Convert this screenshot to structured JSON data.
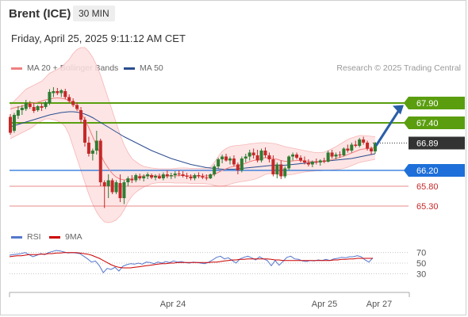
{
  "header": {
    "instrument": "Brent (ICE)",
    "timeframe": "30 MIN",
    "datetime": "Friday, April 25, 2025 9:11:12 AM CET"
  },
  "legend": {
    "ma20_label": "MA 20 + Bollinger Bands",
    "ma50_label": "MA 50",
    "credit": "Research © 2025 Trading Central"
  },
  "rsi_legend": {
    "rsi_label": "RSI",
    "ma9_label": "9MA"
  },
  "colors": {
    "up": "#2e7d32",
    "down": "#c62828",
    "resistance": "#5a9e0f",
    "pivot": "#1e6fd9",
    "support": "#e06060",
    "last": "#333333",
    "ma20": "#f08080",
    "ma50": "#2a4d8f",
    "bollinger_fill": "#fde0e0",
    "rsi": "#5577cc",
    "rsi_ma": "#cc0000"
  },
  "chart_data": [
    {
      "type": "candlestick",
      "title": "Brent (ICE) 30 MIN",
      "x_labels": [
        "Apr 24",
        "Apr 25",
        "Apr 27"
      ],
      "ylim": [
        64.9,
        68.5
      ],
      "levels": [
        {
          "value": 67.9,
          "label": "67.90",
          "role": "resistance"
        },
        {
          "value": 67.4,
          "label": "67.40",
          "role": "resistance"
        },
        {
          "value": 66.89,
          "label": "66.89",
          "role": "last"
        },
        {
          "value": 66.2,
          "label": "66.20",
          "role": "pivot"
        },
        {
          "value": 65.8,
          "label": "65.80",
          "role": "support"
        },
        {
          "value": 65.3,
          "label": "65.30",
          "role": "support"
        }
      ],
      "candles": [
        [
          67.55,
          67.62,
          67.1,
          67.15
        ],
        [
          67.2,
          67.65,
          67.15,
          67.6
        ],
        [
          67.58,
          67.82,
          67.5,
          67.72
        ],
        [
          67.72,
          67.85,
          67.6,
          67.78
        ],
        [
          67.75,
          67.98,
          67.7,
          67.9
        ],
        [
          67.88,
          67.95,
          67.75,
          67.8
        ],
        [
          67.8,
          67.9,
          67.65,
          67.7
        ],
        [
          67.72,
          67.85,
          67.68,
          67.82
        ],
        [
          67.82,
          67.9,
          67.7,
          67.78
        ],
        [
          67.8,
          67.95,
          67.75,
          67.92
        ],
        [
          67.9,
          68.25,
          67.85,
          68.18
        ],
        [
          68.15,
          68.3,
          68.05,
          68.2
        ],
        [
          68.2,
          68.28,
          68.1,
          68.15
        ],
        [
          68.15,
          68.25,
          68.05,
          68.22
        ],
        [
          68.2,
          68.26,
          68.0,
          68.05
        ],
        [
          68.05,
          68.12,
          67.9,
          67.95
        ],
        [
          67.95,
          68.02,
          67.8,
          67.85
        ],
        [
          67.85,
          67.92,
          67.7,
          67.75
        ],
        [
          67.72,
          67.8,
          67.4,
          67.48
        ],
        [
          67.48,
          67.55,
          66.8,
          66.9
        ],
        [
          66.9,
          67.05,
          66.55,
          66.62
        ],
        [
          66.62,
          66.75,
          66.45,
          66.7
        ],
        [
          66.7,
          67.2,
          66.6,
          66.95
        ],
        [
          66.95,
          67.0,
          65.8,
          65.9
        ],
        [
          65.9,
          65.95,
          65.25,
          65.8
        ],
        [
          65.8,
          66.1,
          65.5,
          65.95
        ],
        [
          65.95,
          66.0,
          65.6,
          65.65
        ],
        [
          65.65,
          65.95,
          65.6,
          65.9
        ],
        [
          65.88,
          66.1,
          65.4,
          65.5
        ],
        [
          65.5,
          65.95,
          65.35,
          65.9
        ],
        [
          65.9,
          66.05,
          65.8,
          66.0
        ],
        [
          65.98,
          66.08,
          65.88,
          65.95
        ],
        [
          65.95,
          66.12,
          65.9,
          66.08
        ],
        [
          66.05,
          66.12,
          65.95,
          66.0
        ],
        [
          66.0,
          66.1,
          65.92,
          66.05
        ],
        [
          66.05,
          66.15,
          65.98,
          66.1
        ],
        [
          66.08,
          66.12,
          65.98,
          66.02
        ],
        [
          66.02,
          66.1,
          65.95,
          66.06
        ],
        [
          66.05,
          66.12,
          65.98,
          66.0
        ],
        [
          66.0,
          66.15,
          65.95,
          66.1
        ],
        [
          66.1,
          66.2,
          66.0,
          66.05
        ],
        [
          66.05,
          66.14,
          65.98,
          66.08
        ],
        [
          66.08,
          66.18,
          66.0,
          66.12
        ],
        [
          66.12,
          66.2,
          66.05,
          66.1
        ],
        [
          66.1,
          66.18,
          66.02,
          66.06
        ],
        [
          66.06,
          66.14,
          65.98,
          66.04
        ],
        [
          66.04,
          66.1,
          65.95,
          66.0
        ],
        [
          66.0,
          66.12,
          65.95,
          66.08
        ],
        [
          66.08,
          66.15,
          66.0,
          66.05
        ],
        [
          66.05,
          66.12,
          65.98,
          66.02
        ],
        [
          66.02,
          66.1,
          65.95,
          66.0
        ],
        [
          66.0,
          66.12,
          65.98,
          66.1
        ],
        [
          66.1,
          66.35,
          66.05,
          66.3
        ],
        [
          66.3,
          66.52,
          66.25,
          66.48
        ],
        [
          66.48,
          66.6,
          66.38,
          66.55
        ],
        [
          66.55,
          66.62,
          66.42,
          66.45
        ],
        [
          66.45,
          66.55,
          66.35,
          66.5
        ],
        [
          66.5,
          66.58,
          66.3,
          66.35
        ],
        [
          66.35,
          66.4,
          66.1,
          66.2
        ],
        [
          66.2,
          66.55,
          66.15,
          66.5
        ],
        [
          66.5,
          66.62,
          66.4,
          66.55
        ],
        [
          66.55,
          66.72,
          66.45,
          66.65
        ],
        [
          66.65,
          66.75,
          66.5,
          66.58
        ],
        [
          66.58,
          66.72,
          66.4,
          66.45
        ],
        [
          66.45,
          66.75,
          66.4,
          66.7
        ],
        [
          66.7,
          66.78,
          66.52,
          66.58
        ],
        [
          66.58,
          66.65,
          66.4,
          66.48
        ],
        [
          66.48,
          66.58,
          66.05,
          66.1
        ],
        [
          66.1,
          66.4,
          66.0,
          66.35
        ],
        [
          66.35,
          66.45,
          65.98,
          66.05
        ],
        [
          66.05,
          66.3,
          66.0,
          66.25
        ],
        [
          66.25,
          66.58,
          66.2,
          66.55
        ],
        [
          66.55,
          66.65,
          66.45,
          66.6
        ],
        [
          66.6,
          66.65,
          66.48,
          66.52
        ],
        [
          66.52,
          66.58,
          66.4,
          66.45
        ],
        [
          66.45,
          66.55,
          66.35,
          66.4
        ],
        [
          66.4,
          66.48,
          66.3,
          66.35
        ],
        [
          66.35,
          66.45,
          66.28,
          66.42
        ],
        [
          66.42,
          66.5,
          66.35,
          66.4
        ],
        [
          66.4,
          66.48,
          66.32,
          66.45
        ],
        [
          66.45,
          66.52,
          66.38,
          66.42
        ],
        [
          66.42,
          66.7,
          66.4,
          66.65
        ],
        [
          66.65,
          66.72,
          66.5,
          66.55
        ],
        [
          66.55,
          66.65,
          66.48,
          66.6
        ],
        [
          66.6,
          66.68,
          66.52,
          66.58
        ],
        [
          66.58,
          66.78,
          66.55,
          66.75
        ],
        [
          66.75,
          66.85,
          66.65,
          66.7
        ],
        [
          66.7,
          66.9,
          66.65,
          66.85
        ],
        [
          66.85,
          66.95,
          66.78,
          66.82
        ],
        [
          66.82,
          67.02,
          66.78,
          66.98
        ],
        [
          66.98,
          67.05,
          66.85,
          66.9
        ],
        [
          66.9,
          66.95,
          66.7,
          66.75
        ],
        [
          66.75,
          66.8,
          66.6,
          66.68
        ],
        [
          66.68,
          66.92,
          66.62,
          66.89
        ]
      ],
      "ma20": [
        67.75,
        67.78,
        67.8,
        67.82,
        67.85,
        67.88,
        67.9,
        67.92,
        67.95,
        67.98,
        68.0,
        68.02,
        68.03,
        68.02,
        68.0,
        67.96,
        67.9,
        67.8,
        67.66,
        67.48,
        67.28,
        67.05,
        66.82,
        66.6,
        66.4,
        66.25,
        66.12,
        66.03,
        65.98,
        65.96,
        65.97,
        65.99,
        66.02,
        66.05,
        66.06,
        66.07,
        66.07,
        66.06,
        66.06,
        66.06,
        66.06,
        66.06,
        66.06,
        66.07,
        66.07,
        66.07,
        66.06,
        66.06,
        66.06,
        66.06,
        66.06,
        66.07,
        66.1,
        66.15,
        66.2,
        66.24,
        66.28,
        66.3,
        66.32,
        66.35,
        66.38,
        66.42,
        66.45,
        66.47,
        66.5,
        66.52,
        66.52,
        66.5,
        66.48,
        66.45,
        66.43,
        66.43,
        66.44,
        66.45,
        66.45,
        66.44,
        66.43,
        66.42,
        66.42,
        66.42,
        66.43,
        66.45,
        66.47,
        66.5,
        66.53,
        66.56,
        66.6,
        66.64,
        66.68,
        66.72,
        66.74,
        66.75,
        66.76,
        66.77
      ],
      "ma50": [
        67.3,
        67.33,
        67.36,
        67.39,
        67.42,
        67.45,
        67.48,
        67.51,
        67.54,
        67.57,
        67.6,
        67.62,
        67.64,
        67.66,
        67.67,
        67.68,
        67.68,
        67.67,
        67.65,
        67.62,
        67.58,
        67.53,
        67.47,
        67.41,
        67.35,
        67.29,
        67.23,
        67.17,
        67.11,
        67.05,
        67.0,
        66.95,
        66.9,
        66.85,
        66.8,
        66.75,
        66.7,
        66.66,
        66.62,
        66.58,
        66.54,
        66.5,
        66.47,
        66.44,
        66.41,
        66.38,
        66.35,
        66.33,
        66.31,
        66.29,
        66.27,
        66.26,
        66.25,
        66.24,
        66.23,
        66.23,
        66.23,
        66.23,
        66.24,
        66.25,
        66.26,
        66.27,
        66.28,
        66.29,
        66.3,
        66.31,
        66.32,
        66.33,
        66.33,
        66.33,
        66.33,
        66.34,
        66.35,
        66.36,
        66.37,
        66.38,
        66.39,
        66.4,
        66.41,
        66.42,
        66.43,
        66.44,
        66.45,
        66.46,
        66.47,
        66.48,
        66.49,
        66.5,
        66.52,
        66.54,
        66.56,
        66.58,
        66.6,
        66.62
      ],
      "bollinger_upper": [
        67.85,
        67.95,
        68.05,
        68.15,
        68.25,
        68.3,
        68.35,
        68.4,
        68.45,
        68.55,
        68.65,
        68.7,
        68.75,
        68.8,
        68.9,
        69.0,
        69.15,
        69.25,
        69.3,
        69.3,
        69.2,
        69.05,
        68.85,
        68.6,
        68.3,
        68.0,
        67.7,
        67.4,
        67.1,
        66.85,
        66.65,
        66.5,
        66.42,
        66.35,
        66.3,
        66.28,
        66.26,
        66.25,
        66.24,
        66.24,
        66.24,
        66.24,
        66.25,
        66.26,
        66.26,
        66.26,
        66.25,
        66.25,
        66.25,
        66.25,
        66.26,
        66.28,
        66.4,
        66.55,
        66.68,
        66.75,
        66.8,
        66.82,
        66.83,
        66.84,
        66.85,
        66.87,
        66.88,
        66.89,
        66.9,
        66.9,
        66.89,
        66.88,
        66.86,
        66.83,
        66.8,
        66.78,
        66.76,
        66.74,
        66.72,
        66.7,
        66.68,
        66.66,
        66.65,
        66.65,
        66.66,
        66.7,
        66.75,
        66.8,
        66.86,
        66.92,
        66.98,
        67.02,
        67.05,
        67.08,
        67.08,
        67.07,
        67.06,
        67.05
      ],
      "bollinger_lower": [
        67.0,
        67.05,
        67.1,
        67.15,
        67.2,
        67.25,
        67.32,
        67.4,
        67.45,
        67.5,
        67.5,
        67.48,
        67.45,
        67.4,
        67.3,
        67.1,
        66.8,
        66.5,
        66.2,
        65.9,
        65.6,
        65.35,
        65.15,
        65.0,
        64.9,
        64.88,
        64.9,
        64.95,
        65.05,
        65.2,
        65.4,
        65.55,
        65.65,
        65.72,
        65.78,
        65.82,
        65.86,
        65.88,
        65.89,
        65.89,
        65.89,
        65.89,
        65.88,
        65.88,
        65.88,
        65.88,
        65.87,
        65.87,
        65.87,
        65.87,
        65.86,
        65.85,
        65.82,
        65.8,
        65.8,
        65.82,
        65.85,
        65.88,
        65.9,
        65.92,
        65.93,
        65.95,
        65.97,
        66.0,
        66.05,
        66.1,
        66.12,
        66.12,
        66.1,
        66.08,
        66.08,
        66.09,
        66.1,
        66.12,
        66.14,
        66.16,
        66.17,
        66.18,
        66.19,
        66.19,
        66.2,
        66.2,
        66.21,
        66.22,
        66.23,
        66.25,
        66.28,
        66.32,
        66.36,
        66.4,
        66.42,
        66.44,
        66.46,
        66.48
      ]
    },
    {
      "type": "line",
      "title": "RSI",
      "yticks": [
        30,
        50,
        70
      ],
      "ylim": [
        20,
        80
      ],
      "series": [
        {
          "name": "RSI",
          "values": [
            65,
            66,
            67,
            68,
            70,
            66,
            62,
            65,
            68,
            66,
            70,
            72,
            74,
            73,
            71,
            69,
            70,
            69,
            68,
            63,
            58,
            52,
            54,
            45,
            32,
            40,
            38,
            42,
            35,
            44,
            47,
            49,
            48,
            50,
            48,
            52,
            51,
            49,
            52,
            50,
            53,
            51,
            54,
            52,
            53,
            51,
            50,
            52,
            51,
            50,
            49,
            52,
            56,
            61,
            63,
            58,
            60,
            55,
            50,
            58,
            61,
            63,
            60,
            56,
            62,
            58,
            55,
            45,
            55,
            46,
            53,
            61,
            63,
            58,
            57,
            54,
            53,
            55,
            54,
            56,
            55,
            57,
            55,
            58,
            59,
            61,
            60,
            62,
            62,
            64,
            62,
            56,
            52,
            60
          ]
        },
        {
          "name": "9MA",
          "values": [
            62,
            63,
            64,
            64,
            65,
            66,
            66,
            66,
            67,
            67,
            68,
            68,
            69,
            69,
            70,
            70,
            70,
            70,
            69,
            68,
            67,
            65,
            62,
            59,
            55,
            51,
            47,
            44,
            42,
            41,
            41,
            41,
            42,
            43,
            44,
            45,
            46,
            47,
            48,
            49,
            49,
            50,
            50,
            51,
            51,
            51,
            51,
            51,
            51,
            51,
            51,
            51,
            52,
            52,
            53,
            54,
            55,
            56,
            56,
            57,
            57,
            58,
            58,
            58,
            58,
            58,
            58,
            57,
            56,
            56,
            55,
            55,
            55,
            55,
            55,
            55,
            55,
            55,
            55,
            55,
            55,
            55,
            55,
            56,
            56,
            57,
            57,
            58,
            58,
            59,
            59,
            59,
            59,
            59
          ]
        }
      ]
    }
  ]
}
